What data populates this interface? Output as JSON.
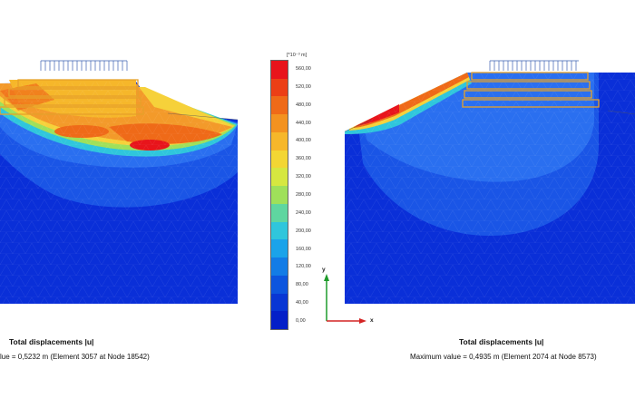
{
  "legend": {
    "unit": "[*10⁻³ m]",
    "ticks": [
      "560,00",
      "520,00",
      "480,00",
      "440,00",
      "400,00",
      "360,00",
      "320,00",
      "280,00",
      "240,00",
      "200,00",
      "160,00",
      "120,00",
      "80,00",
      "40,00",
      "0,00"
    ],
    "colors": [
      "#e8141b",
      "#ec3f16",
      "#ef6a18",
      "#f39220",
      "#f6b72a",
      "#f3d633",
      "#d6e740",
      "#9fe05a",
      "#5fd6a0",
      "#2fc6dc",
      "#1aa3ea",
      "#127ce6",
      "#0c55de",
      "#0836d4",
      "#041fc8"
    ]
  },
  "axes": {
    "x": "x",
    "y": "y"
  },
  "left_panel": {
    "title": "Total displacements |u|",
    "value": "lue = 0,5232 m (Element 3057 at Node 18542)"
  },
  "right_panel": {
    "title": "Total displacements |u|",
    "value": "Maximum value = 0,4935 m (Element 2074 at Node 8573)"
  },
  "colors": {
    "deep_blue": "#0a2fd8",
    "mid_blue": "#1a55e6",
    "light_blue": "#2a6ff0",
    "orange": "#f39a2a",
    "deep_orange": "#ef6a18",
    "red": "#e8141b",
    "yellow": "#f6d13a",
    "structure": "#e6a12a",
    "load": "#3a5fb0"
  }
}
